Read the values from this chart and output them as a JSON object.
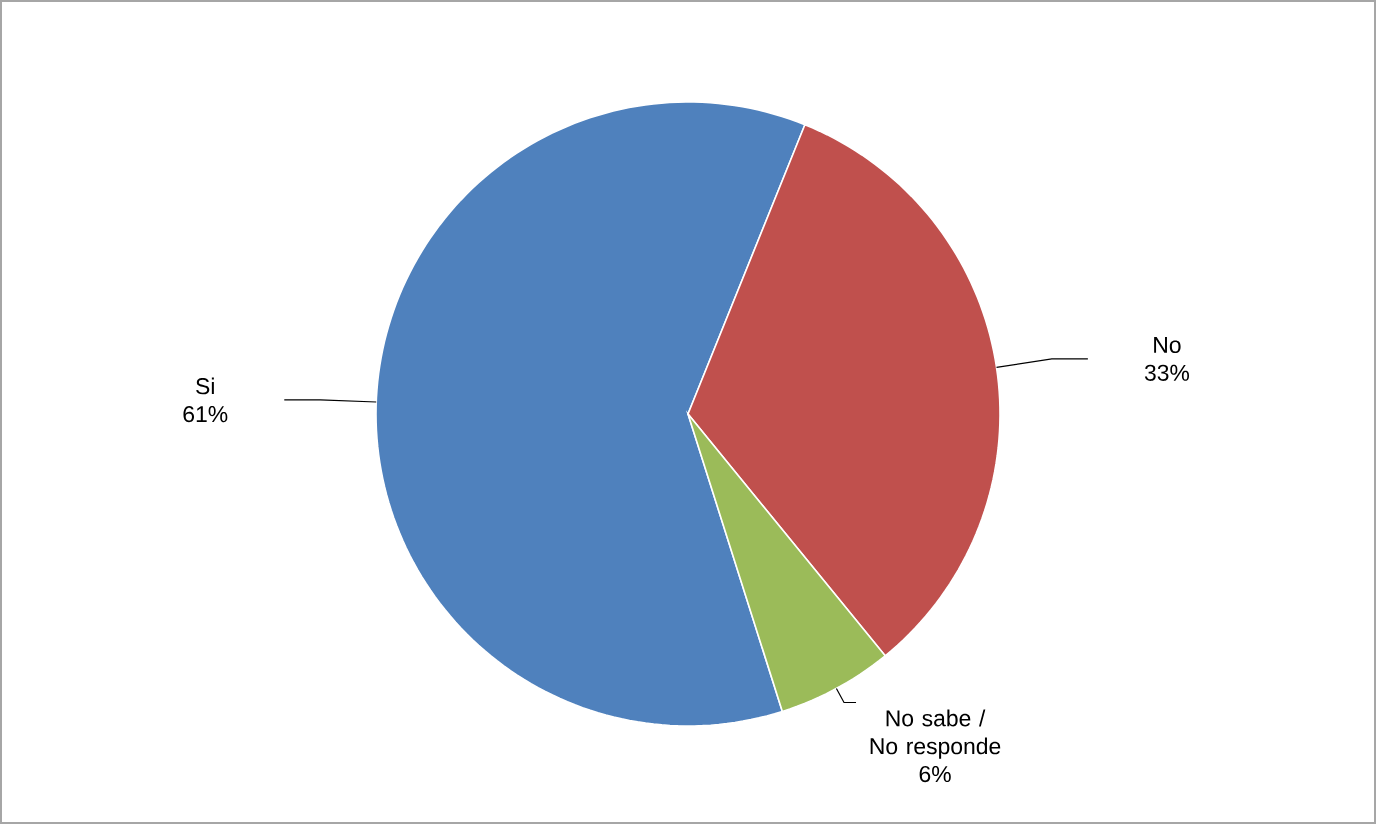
{
  "chart_data": {
    "type": "pie",
    "categories": [
      "Si",
      "No",
      "No sabe / No responde"
    ],
    "values": [
      61,
      33,
      6
    ],
    "value_labels": [
      "61%",
      "33%",
      "6%"
    ],
    "colors": [
      "#4f81bd",
      "#c0504d",
      "#9bbb59"
    ]
  }
}
